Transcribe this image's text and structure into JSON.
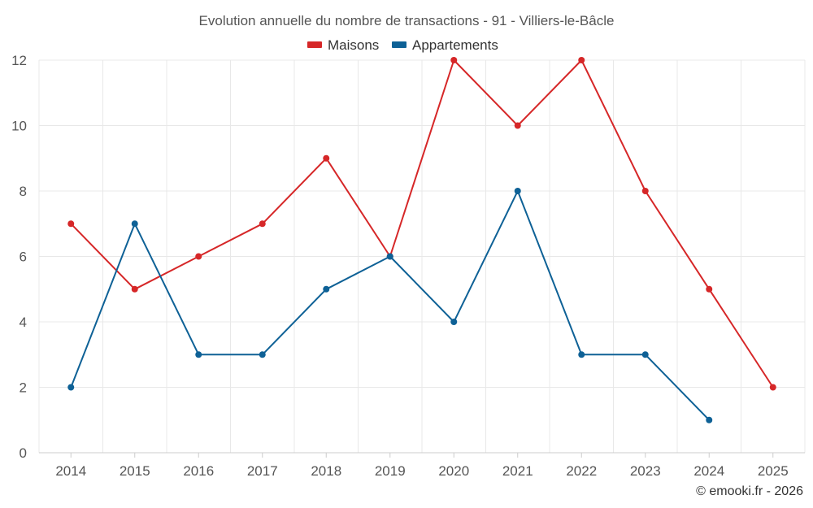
{
  "chart_data": {
    "type": "line",
    "title": "Evolution annuelle du nombre de transactions - 91 - Villiers-le-Bâcle",
    "categories": [
      "2014",
      "2015",
      "2016",
      "2017",
      "2018",
      "2019",
      "2020",
      "2021",
      "2022",
      "2023",
      "2024",
      "2025"
    ],
    "series": [
      {
        "name": "Maisons",
        "color": "#d62728",
        "values": [
          7,
          5,
          6,
          7,
          9,
          6,
          12,
          10,
          12,
          8,
          5,
          2
        ]
      },
      {
        "name": "Appartements",
        "color": "#0e6196",
        "values": [
          2,
          7,
          3,
          3,
          5,
          6,
          4,
          8,
          3,
          3,
          1,
          null
        ]
      }
    ],
    "xlabel": "",
    "ylabel": "",
    "ylim": [
      0,
      12
    ],
    "yticks": [
      "0",
      "2",
      "4",
      "6",
      "8",
      "10",
      "12"
    ],
    "legend_position": "top-center",
    "grid": true
  },
  "credit": "© emooki.fr - 2026"
}
